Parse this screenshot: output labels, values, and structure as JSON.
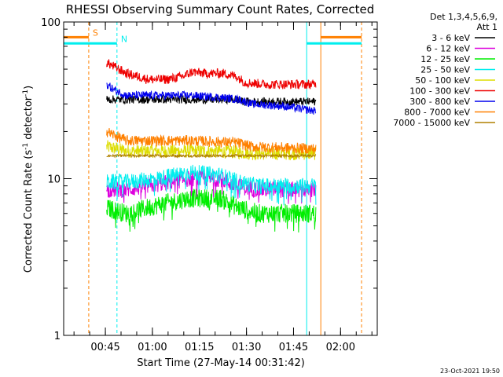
{
  "chart_data": {
    "type": "line",
    "title": "RHESSI Observing Summary Count Rates, Corrected",
    "xlabel": "Start Time (27-May-14 00:31:42)",
    "ylabel_main": "Corrected Count Rate (s",
    "ylabel_sup1": "-1",
    "ylabel_mid": " detector",
    "ylabel_sup2": "-1",
    "ylabel_end": ")",
    "x_range_minutes": [
      0,
      100
    ],
    "y_scale": "log",
    "ylim": [
      1,
      100
    ],
    "y_ticks": [
      {
        "value": 1,
        "label": "1"
      },
      {
        "value": 10,
        "label": "10"
      },
      {
        "value": 100,
        "label": "100"
      }
    ],
    "x_ticks": [
      {
        "minute": 13.3,
        "label": "00:45"
      },
      {
        "minute": 28.3,
        "label": "01:00"
      },
      {
        "minute": 43.3,
        "label": "01:15"
      },
      {
        "minute": 58.3,
        "label": "01:30"
      },
      {
        "minute": 73.3,
        "label": "01:45"
      },
      {
        "minute": 88.3,
        "label": "02:00"
      }
    ],
    "legend": {
      "header_line1": "Det 1,3,4,5,6,9,",
      "header_line2": "Att 1",
      "placement": "right",
      "entries": [
        {
          "label": "3 - 6 keV",
          "color": "#000000"
        },
        {
          "label": "6 - 12 keV",
          "color": "#dd00dd"
        },
        {
          "label": "12 - 25 keV",
          "color": "#00ee00"
        },
        {
          "label": "25 - 50 keV",
          "color": "#00eeee"
        },
        {
          "label": "50 - 100 keV",
          "color": "#dddd00"
        },
        {
          "label": "100 - 300 keV",
          "color": "#ee0000"
        },
        {
          "label": "300 - 800 keV",
          "color": "#0000ee"
        },
        {
          "label": "800 - 7000 keV",
          "color": "#ff8000"
        },
        {
          "label": "7000 - 15000 keV",
          "color": "#b08000"
        }
      ]
    },
    "flags": [
      {
        "label": "S",
        "color": "#ff8000",
        "y_value": 80,
        "segments": [
          [
            0,
            8
          ],
          [
            82,
            95
          ]
        ],
        "dashed_x": [
          8,
          95
        ],
        "solid_x": [
          82
        ]
      },
      {
        "label": "N",
        "color": "#00eeee",
        "y_value": 73,
        "segments": [
          [
            0,
            17
          ],
          [
            77.5,
            95
          ]
        ],
        "dashed_x": [
          17
        ],
        "solid_x": [
          0,
          77.5
        ]
      }
    ],
    "series": [
      {
        "name": "3 - 6 keV",
        "color": "#000000",
        "noise": 0.06,
        "points": [
          [
            13.7,
            32
          ],
          [
            55,
            32
          ],
          [
            57,
            31
          ],
          [
            80.5,
            31
          ]
        ]
      },
      {
        "name": "6 - 12 keV",
        "color": "#dd00dd",
        "noise": 0.12,
        "points": [
          [
            13.7,
            8.5
          ],
          [
            20,
            8.5
          ],
          [
            30,
            9.2
          ],
          [
            40,
            10
          ],
          [
            50,
            10
          ],
          [
            55,
            9
          ],
          [
            62,
            8.5
          ],
          [
            80.5,
            8.5
          ]
        ]
      },
      {
        "name": "12 - 25 keV",
        "color": "#00ee00",
        "noise": 0.14,
        "points": [
          [
            13.7,
            6.5
          ],
          [
            20,
            6
          ],
          [
            30,
            6.8
          ],
          [
            40,
            7.5
          ],
          [
            50,
            7.5
          ],
          [
            56,
            6.5
          ],
          [
            62,
            6
          ],
          [
            80.5,
            6
          ]
        ]
      },
      {
        "name": "25 - 50 keV",
        "color": "#00eeee",
        "noise": 0.12,
        "points": [
          [
            13.7,
            9.5
          ],
          [
            20,
            9.5
          ],
          [
            30,
            10
          ],
          [
            40,
            11
          ],
          [
            50,
            10.5
          ],
          [
            56,
            9.5
          ],
          [
            62,
            9
          ],
          [
            80.5,
            9
          ]
        ]
      },
      {
        "name": "50 - 100 keV",
        "color": "#dddd00",
        "noise": 0.1,
        "points": [
          [
            13.7,
            16
          ],
          [
            20,
            15
          ],
          [
            30,
            15
          ],
          [
            45,
            15
          ],
          [
            55,
            14.8
          ],
          [
            60,
            14.5
          ],
          [
            80.5,
            14.5
          ]
        ]
      },
      {
        "name": "100 - 300 keV",
        "color": "#ee0000",
        "noise": 0.07,
        "points": [
          [
            13.7,
            55
          ],
          [
            16,
            52
          ],
          [
            20,
            47
          ],
          [
            27,
            43
          ],
          [
            33,
            43
          ],
          [
            38,
            45
          ],
          [
            41,
            48
          ],
          [
            45,
            47
          ],
          [
            51,
            47
          ],
          [
            55,
            45
          ],
          [
            58,
            41
          ],
          [
            65,
            40
          ],
          [
            80.5,
            40
          ]
        ]
      },
      {
        "name": "300 - 800 keV",
        "color": "#0000ee",
        "noise": 0.06,
        "points": [
          [
            13.7,
            40
          ],
          [
            16,
            37
          ],
          [
            20,
            34
          ],
          [
            30,
            34
          ],
          [
            40,
            34
          ],
          [
            50,
            33
          ],
          [
            56,
            32
          ],
          [
            60,
            30
          ],
          [
            70,
            29
          ],
          [
            80.5,
            27
          ]
        ]
      },
      {
        "name": "800 - 7000 keV",
        "color": "#ff8000",
        "noise": 0.08,
        "points": [
          [
            13.7,
            20
          ],
          [
            16,
            19
          ],
          [
            20,
            17.5
          ],
          [
            40,
            17.5
          ],
          [
            55,
            17
          ],
          [
            60,
            16
          ],
          [
            80.5,
            15.5
          ]
        ]
      },
      {
        "name": "7000 - 15000 keV",
        "color": "#b08000",
        "noise": 0.02,
        "points": [
          [
            13.7,
            14
          ],
          [
            80.5,
            14
          ]
        ]
      }
    ]
  },
  "footer": {
    "timestamp": "23-Oct-2021 19:50"
  }
}
